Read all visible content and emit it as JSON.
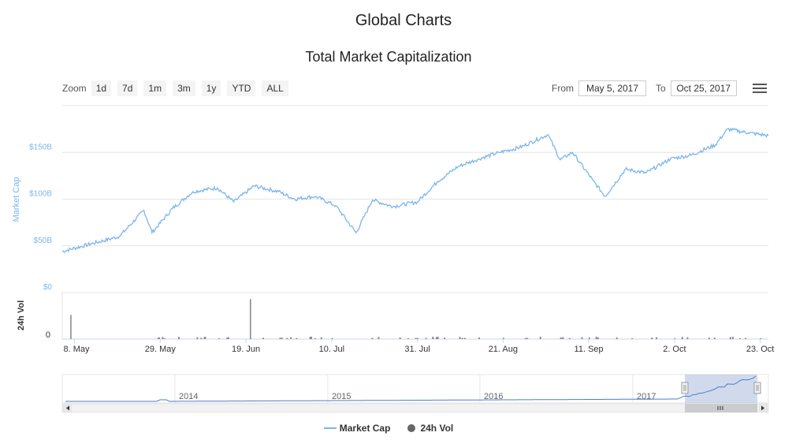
{
  "header": {
    "page_title": "Global Charts"
  },
  "range_selector": {
    "zoom_label": "Zoom",
    "buttons": [
      "1d",
      "7d",
      "1m",
      "3m",
      "1y",
      "YTD",
      "ALL"
    ],
    "from_label": "From",
    "from_value": "May 5, 2017",
    "to_label": "To",
    "to_value": "Oct 25, 2017"
  },
  "chart_data": {
    "type": "line",
    "title": "Total Market Capitalization",
    "ylabel": "Market Cap",
    "y_ticks": [
      "$0",
      "$50B",
      "$100B",
      "$150B"
    ],
    "y_tick_values": [
      0,
      50,
      100,
      150
    ],
    "ylim": [
      0,
      200
    ],
    "x_ticks": [
      "8. May",
      "29. May",
      "19. Jun",
      "10. Jul",
      "31. Jul",
      "21. Aug",
      "11. Sep",
      "2. Oct",
      "23. Oct"
    ],
    "x_range": [
      "2017-05-05",
      "2017-10-25"
    ],
    "series": [
      {
        "name": "Market Cap",
        "color": "#7cb5ec",
        "x": [
          "2017-05-05",
          "2017-05-12",
          "2017-05-19",
          "2017-05-25",
          "2017-05-27",
          "2017-06-01",
          "2017-06-06",
          "2017-06-12",
          "2017-06-16",
          "2017-06-21",
          "2017-06-27",
          "2017-07-01",
          "2017-07-06",
          "2017-07-11",
          "2017-07-16",
          "2017-07-20",
          "2017-07-25",
          "2017-07-31",
          "2017-08-05",
          "2017-08-10",
          "2017-08-15",
          "2017-08-20",
          "2017-08-25",
          "2017-09-01",
          "2017-09-04",
          "2017-09-07",
          "2017-09-12",
          "2017-09-15",
          "2017-09-20",
          "2017-09-25",
          "2017-10-01",
          "2017-10-06",
          "2017-10-12",
          "2017-10-15",
          "2017-10-20",
          "2017-10-25"
        ],
        "values": [
          44,
          52,
          60,
          88,
          64,
          90,
          108,
          112,
          97,
          114,
          108,
          100,
          103,
          93,
          64,
          99,
          92,
          97,
          119,
          135,
          143,
          150,
          155,
          169,
          142,
          150,
          120,
          103,
          132,
          128,
          143,
          147,
          158,
          175,
          171,
          168
        ]
      },
      {
        "name": "24h Vol",
        "color": "#666666",
        "x": [
          "2017-05-07",
          "2017-05-30",
          "2017-06-20",
          "2017-07-10",
          "2017-07-31",
          "2017-08-21",
          "2017-09-11",
          "2017-10-02",
          "2017-10-23"
        ],
        "values": [
          0.52,
          0.02,
          0.86,
          0.02,
          0.02,
          0.03,
          0.04,
          0.02,
          0.02
        ]
      }
    ],
    "volume_axis": {
      "label": "24h Vol",
      "ticks": [
        "0"
      ]
    },
    "navigator": {
      "years": [
        "2014",
        "2015",
        "2016",
        "2017"
      ],
      "selected_range": [
        "2017-05-05",
        "2017-10-25"
      ]
    },
    "legend": [
      "Market Cap",
      "24h Vol"
    ],
    "legend_position": "bottom-center",
    "grid": true
  }
}
